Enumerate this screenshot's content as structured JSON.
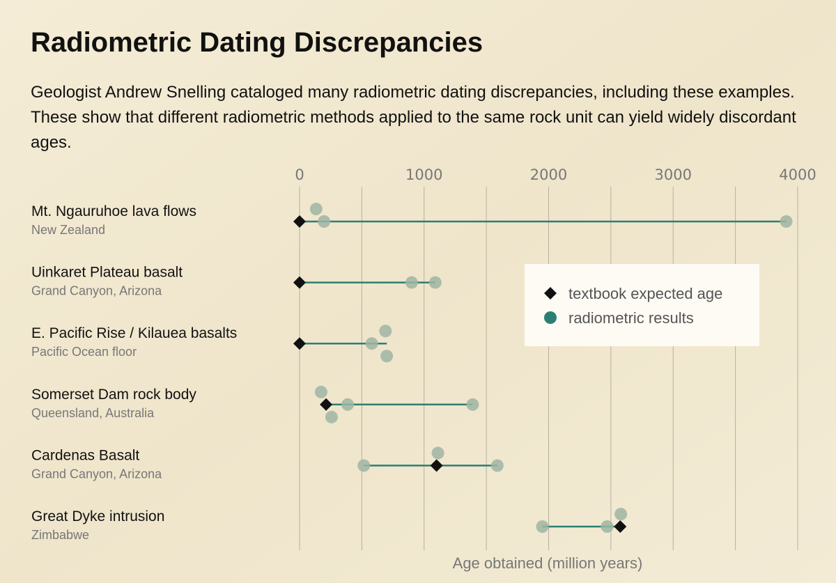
{
  "chart_data": {
    "type": "dot-range",
    "title": "Radiometric Dating Discrepancies",
    "subtitle": "Geologist Andrew Snelling cataloged many radiometric dating discrepancies, including these examples. These show that different radiometric methods applied to the same rock unit can yield widely discordant ages.",
    "x_label": "Age obtained (million years)",
    "xlim": [
      0,
      4000
    ],
    "xticks": [
      0,
      1000,
      2000,
      3000,
      4000
    ],
    "xminor": [
      500,
      1500,
      2500,
      3500
    ],
    "grid": true,
    "legend": {
      "position": "right",
      "expected": "textbook expected age",
      "results": "radiometric results"
    },
    "colors": {
      "expected": "#111111",
      "results": "#9fb5a3",
      "range": "#2a7f72"
    },
    "rows": [
      {
        "name": "Mt. Ngauruhoe lava flows",
        "location": "New Zealand",
        "expected": 0,
        "results": [
          197,
          133,
          3908
        ]
      },
      {
        "name": "Uinkaret Plateau basalt",
        "location": "Grand Canyon, Arizona",
        "expected": 0,
        "results": [
          900,
          1090
        ]
      },
      {
        "name": "E. Pacific Rise / Kilauea basalts",
        "location": "Pacific Ocean floor",
        "expected": 0,
        "results": [
          690,
          580,
          700
        ]
      },
      {
        "name": "Somerset Dam rock body",
        "location": "Queensland, Australia",
        "expected": 213,
        "results": [
          173,
          386,
          1390,
          257
        ]
      },
      {
        "name": "Cardenas Basalt",
        "location": "Grand Canyon, Arizona",
        "expected": 1100,
        "results": [
          1111,
          516,
          1588
        ]
      },
      {
        "name": "Great Dyke intrusion",
        "location": "Zimbabwe",
        "expected": 2575,
        "results": [
          2580,
          1950,
          2470
        ]
      }
    ]
  }
}
